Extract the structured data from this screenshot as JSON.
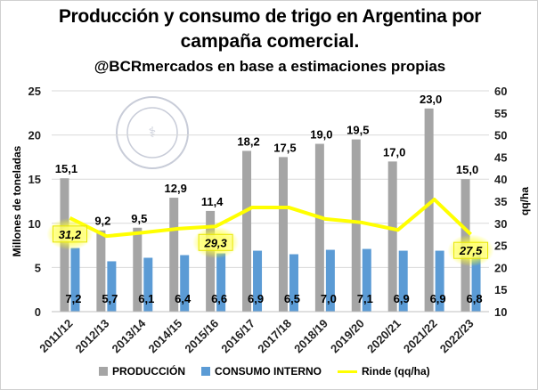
{
  "chart_data": {
    "type": "bar",
    "title": "Producción y consumo de trigo en Argentina por campaña comercial.",
    "title_line1": "Producción y consumo de trigo en Argentina por",
    "title_line2": "campaña comercial.",
    "subtitle": "@BCRmercados en base a estimaciones propias",
    "ylabel": "Millones de toneladas",
    "y2label": "qq/ha",
    "ylim": [
      0,
      25
    ],
    "y2lim": [
      10,
      60
    ],
    "yticks": [
      "0",
      "5",
      "10",
      "15",
      "20",
      "25"
    ],
    "y2ticks": [
      "10",
      "15",
      "20",
      "25",
      "30",
      "35",
      "40",
      "45",
      "50",
      "55",
      "60"
    ],
    "grid": true,
    "legend": "bottom",
    "categories": [
      "2011/12",
      "2012/13",
      "2013/14",
      "2014/15",
      "2015/16",
      "2016/17",
      "2017/18",
      "2018/19",
      "2019/20",
      "2020/21",
      "2021/22",
      "2022/23"
    ],
    "series": [
      {
        "name": "PRODUCCIÓN",
        "type": "bar",
        "axis": "left",
        "color": "#a5a5a5",
        "values": [
          15.1,
          9.2,
          9.5,
          12.9,
          11.4,
          18.2,
          17.5,
          19.0,
          19.5,
          17.0,
          23.0,
          15.0
        ],
        "labels": [
          "15,1",
          "9,2",
          "9,5",
          "12,9",
          "11,4",
          "18,2",
          "17,5",
          "19,0",
          "19,5",
          "17,0",
          "23,0",
          "15,0"
        ]
      },
      {
        "name": "CONSUMO INTERNO",
        "type": "bar",
        "axis": "left",
        "color": "#5b9bd5",
        "values": [
          7.2,
          5.7,
          6.1,
          6.4,
          6.6,
          6.9,
          6.5,
          7.0,
          7.1,
          6.9,
          6.9,
          6.8
        ],
        "labels": [
          "7,2",
          "5,7",
          "6,1",
          "6,4",
          "6,6",
          "6,9",
          "6,5",
          "7,0",
          "7,1",
          "6,9",
          "6,9",
          "6,8"
        ]
      },
      {
        "name": "Rinde (qq/ha)",
        "type": "line",
        "axis": "right",
        "color": "#ffff00",
        "values": [
          31.2,
          27.1,
          27.9,
          28.8,
          29.3,
          33.6,
          33.6,
          31.0,
          30.2,
          28.5,
          35.4,
          27.5
        ],
        "labels": {
          "0": "31,2",
          "4": "29,3",
          "11": "27,5"
        }
      }
    ]
  },
  "watermark": "BOLSA DE COMERCIO DE ROSARIO"
}
